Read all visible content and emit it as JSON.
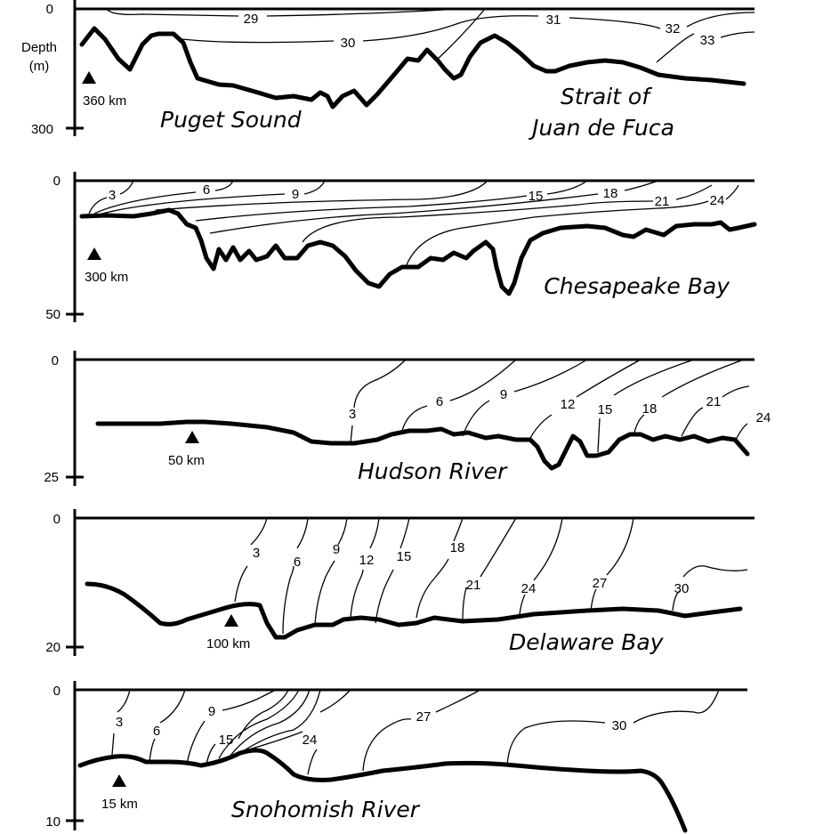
{
  "axis_label": {
    "line1": "Depth",
    "line2": "(m)"
  },
  "panels": [
    {
      "name_lines": [
        "Puget Sound"
      ],
      "name2_lines": [
        "Strait of",
        "Juan de Fuca"
      ],
      "depth_top": "0",
      "depth_bottom": "300",
      "marker": "360 km",
      "isohalines": [
        "29",
        "30",
        "31",
        "32",
        "33"
      ]
    },
    {
      "name_lines": [
        "Chesapeake Bay"
      ],
      "depth_top": "0",
      "depth_bottom": "50",
      "marker": "300 km",
      "isohalines": [
        "3",
        "6",
        "9",
        "15",
        "18",
        "21",
        "24"
      ]
    },
    {
      "name_lines": [
        "Hudson River"
      ],
      "depth_top": "0",
      "depth_bottom": "25",
      "marker": "50 km",
      "isohalines": [
        "3",
        "6",
        "9",
        "12",
        "15",
        "18",
        "21",
        "24"
      ]
    },
    {
      "name_lines": [
        "Delaware Bay"
      ],
      "depth_top": "0",
      "depth_bottom": "20",
      "marker": "100 km",
      "isohalines": [
        "3",
        "6",
        "9",
        "12",
        "15",
        "18",
        "21",
        "24",
        "27",
        "30"
      ]
    },
    {
      "name_lines": [
        "Snohomish River"
      ],
      "depth_top": "0",
      "depth_bottom": "10",
      "marker": "15 km",
      "isohalines": [
        "3",
        "6",
        "9",
        "15",
        "24",
        "27",
        "30"
      ]
    }
  ]
}
